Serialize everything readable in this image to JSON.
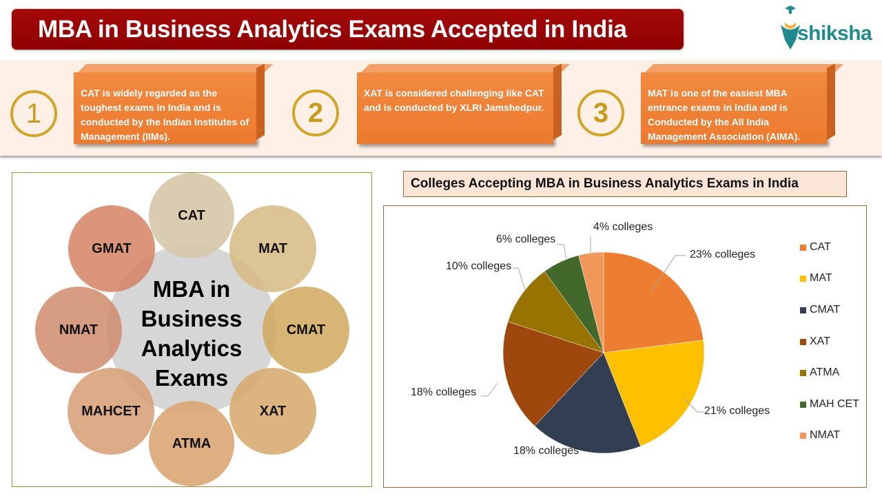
{
  "header": {
    "title": "MBA in Business Analytics Exams Accepted in India",
    "logo_text": "shiksha"
  },
  "facts": [
    {
      "number": "1",
      "text": "CAT is widely regarded as the toughest exams in India and is conducted by the Indian Institutes of Management (IIMs)."
    },
    {
      "number": "2",
      "text": "XAT is considered challenging like CAT and is conducted by XLRI Jamshedpur."
    },
    {
      "number": "3",
      "text": "MAT is one of the easiest MBA entrance exams in India and is Conducted by the All India Management Association (AIMA)."
    }
  ],
  "diagram": {
    "center": "MBA in Business Analytics Exams",
    "exams": [
      "CAT",
      "MAT",
      "CMAT",
      "XAT",
      "ATMA",
      "MAHCET",
      "NMAT",
      "GMAT"
    ]
  },
  "chart_title": "Colleges Accepting MBA  in Business Analytics Exams in India",
  "chart_data": {
    "type": "pie",
    "title": "Colleges Accepting MBA  in Business Analytics Exams in India",
    "categories": [
      "CAT",
      "MAT",
      "CMAT",
      "XAT",
      "ATMA",
      "MAH CET",
      "NMAT"
    ],
    "values": [
      23,
      21,
      18,
      18,
      10,
      6,
      4
    ],
    "labels": [
      "23% colleges",
      "21% colleges",
      "18% colleges",
      "18% colleges",
      "10% colleges",
      "6% colleges",
      "4%  colleges"
    ],
    "colors": [
      "#ed7d31",
      "#ffc000",
      "#323f52",
      "#9e480e",
      "#997300",
      "#43682b",
      "#f1975a"
    ],
    "unit": "% colleges",
    "legend_position": "right"
  }
}
